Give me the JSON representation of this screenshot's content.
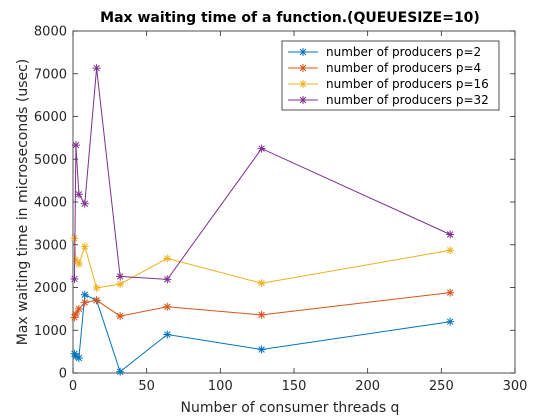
{
  "chart_data": {
    "type": "line",
    "title": "Max waiting time of a function.(QUEUESIZE=10)",
    "xlabel": "Number of consumer threads q",
    "ylabel": "Max waiting time in microseconds (usec)",
    "xlim": [
      0,
      300
    ],
    "ylim": [
      0,
      8000
    ],
    "xticks": [
      0,
      50,
      100,
      150,
      200,
      250,
      300
    ],
    "yticks": [
      0,
      1000,
      2000,
      3000,
      4000,
      5000,
      6000,
      7000,
      8000
    ],
    "grid": false,
    "legend_position": "top-right",
    "marker": "asterisk",
    "x": [
      1,
      2,
      4,
      8,
      16,
      32,
      64,
      128,
      256
    ],
    "series": [
      {
        "name": "number of producers p=2",
        "color": "#0072BD",
        "values": [
          450,
          400,
          350,
          1830,
          1700,
          30,
          900,
          550,
          1200
        ]
      },
      {
        "name": "number of producers p=4",
        "color": "#D95319",
        "values": [
          1300,
          1380,
          1500,
          1650,
          1700,
          1330,
          1550,
          1360,
          1880
        ]
      },
      {
        "name": "number of producers p=16",
        "color": "#EDB120",
        "values": [
          3150,
          2650,
          2550,
          2960,
          1990,
          2080,
          2680,
          2100,
          2870
        ]
      },
      {
        "name": "number of producers p=32",
        "color": "#7E2F8E",
        "values": [
          2200,
          5330,
          4180,
          3960,
          7130,
          2260,
          2190,
          5250,
          3240
        ]
      }
    ]
  }
}
